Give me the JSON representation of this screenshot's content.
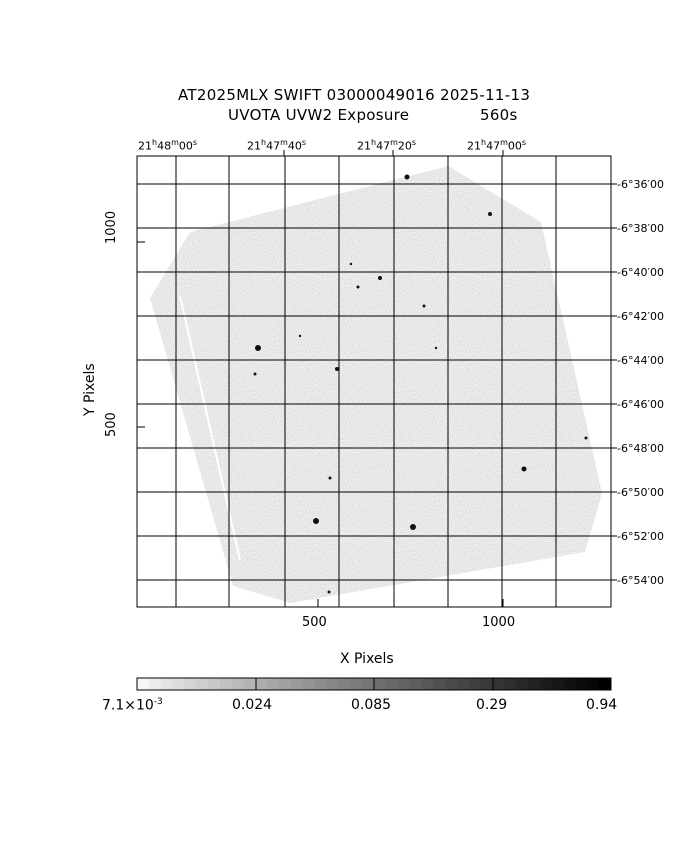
{
  "title": {
    "line1": "AT2025MLX SWIFT 03000049016 2025-11-13",
    "line2_left": "UVOTA UVW2 Exposure",
    "line2_right": "560s"
  },
  "axes": {
    "xlabel": "X Pixels",
    "ylabel": "Y Pixels",
    "x_ticks": [
      "500",
      "1000"
    ],
    "y_ticks": [
      "1000",
      "500"
    ],
    "ra_ticks": [
      {
        "h": "21",
        "m": "48",
        "s": "00"
      },
      {
        "h": "21",
        "m": "47",
        "s": "40"
      },
      {
        "h": "21",
        "m": "47",
        "s": "20"
      },
      {
        "h": "21",
        "m": "47",
        "s": "00"
      }
    ],
    "dec_ticks": [
      "-6°36′00",
      "-6°38′00",
      "-6°40′00",
      "-6°42′00",
      "-6°44′00",
      "-6°46′00",
      "-6°48′00",
      "-6°50′00",
      "-6°52′00",
      "-6°54′00"
    ]
  },
  "colorbar": {
    "labels": [
      "7.1×10",
      "0.024",
      "0.085",
      "0.29",
      "0.94"
    ],
    "first_exponent": "-3"
  },
  "colors": {
    "background": "#ffffff",
    "image_gray": "#9a9a9a",
    "grid": "#000000"
  }
}
